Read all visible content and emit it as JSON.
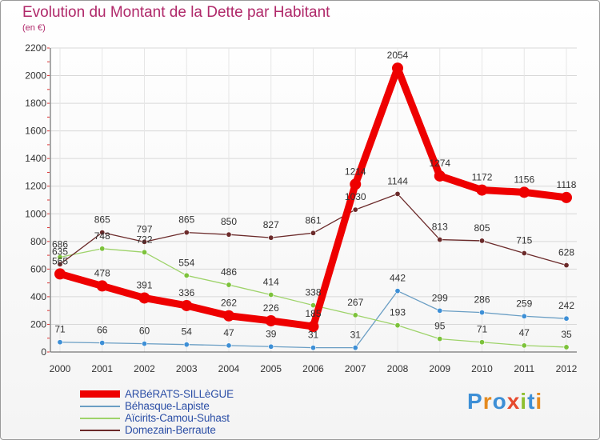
{
  "title": "Evolution du Montant de la Dette par Habitant",
  "unit": "(en €)",
  "brand": {
    "text": "Proxiti",
    "letter_colors": [
      "#3d8fd6",
      "#e58a1f",
      "#3d8fd6",
      "#e64a2e",
      "#8fbf2f",
      "#3d8fd6",
      "#e58a1f"
    ]
  },
  "chart_data": {
    "type": "line",
    "x": [
      "2000",
      "2001",
      "2002",
      "2003",
      "2004",
      "2005",
      "2006",
      "2007",
      "2008",
      "2009",
      "2010",
      "2011",
      "2012"
    ],
    "ylim": [
      0,
      2200
    ],
    "yticks": [
      0,
      200,
      400,
      600,
      800,
      1000,
      1200,
      1400,
      1600,
      1800,
      2000,
      2200
    ],
    "grid": true,
    "legend_position": "bottom-left",
    "series": [
      {
        "name": "ARBéRATS-SILLèGUE",
        "color": "#ee0000",
        "marker_color": "#ee0000",
        "emphasis": true,
        "values": [
          565,
          478,
          391,
          336,
          262,
          226,
          185,
          1214,
          2054,
          1274,
          1172,
          1156,
          1118
        ],
        "labels": [
          "565",
          "478",
          "391",
          "336",
          "262",
          "226",
          "185",
          "1214",
          "2054",
          "1274",
          "1172",
          "1156",
          "1118"
        ]
      },
      {
        "name": "Béhasque-Lapiste",
        "color": "#6a9ec4",
        "marker_color": "#3d8fd6",
        "emphasis": false,
        "values": [
          71,
          66,
          60,
          54,
          47,
          39,
          31,
          31,
          442,
          299,
          286,
          259,
          242
        ],
        "labels": [
          "71",
          "66",
          "60",
          "54",
          "47",
          "39",
          "31",
          "31",
          "442",
          "299",
          "286",
          "259",
          "242"
        ]
      },
      {
        "name": "Aïcirits-Camou-Suhast",
        "color": "#9ed36a",
        "marker_color": "#7cc23a",
        "emphasis": false,
        "values": [
          686,
          748,
          722,
          554,
          486,
          414,
          338,
          267,
          193,
          95,
          71,
          47,
          35
        ],
        "labels": [
          "686",
          "748",
          "722",
          "554",
          "486",
          "414",
          "338",
          "267",
          "193",
          "95",
          "71",
          "47",
          "35"
        ]
      },
      {
        "name": "Domezain-Berraute",
        "color": "#6b2a2a",
        "marker_color": "#6b2a2a",
        "emphasis": false,
        "values": [
          635,
          865,
          797,
          865,
          850,
          827,
          861,
          1030,
          1144,
          813,
          805,
          715,
          628
        ],
        "labels": [
          "635",
          "865",
          "797",
          "865",
          "850",
          "827",
          "861",
          "1030",
          "1144",
          "813",
          "805",
          "715",
          "628"
        ]
      }
    ]
  }
}
